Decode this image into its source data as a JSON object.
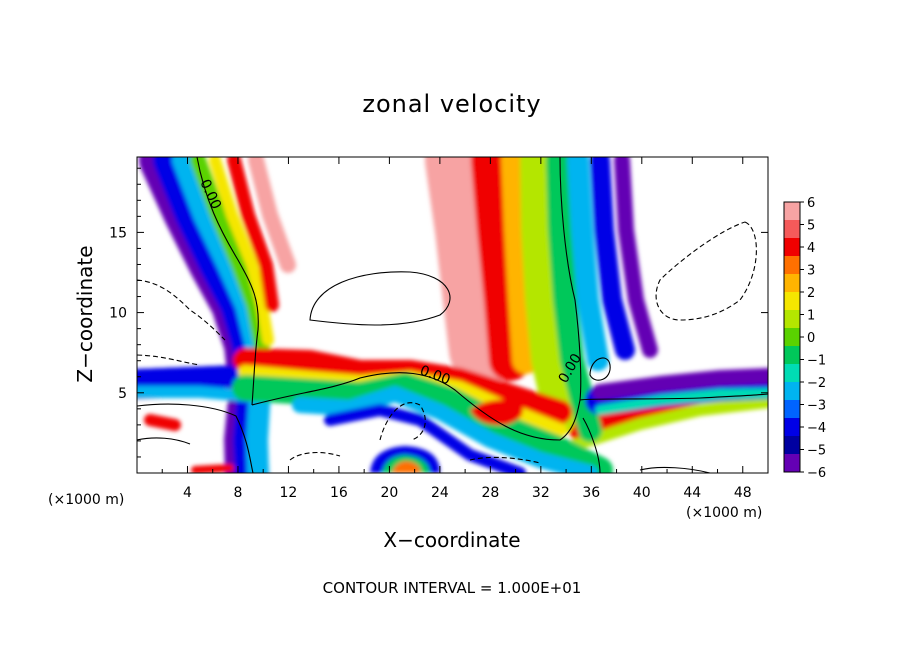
{
  "chart_data": {
    "type": "heatmap",
    "title": "zonal velocity",
    "xlabel": "X−coordinate",
    "ylabel": "Z−coordinate",
    "x_unit_label": "(×1000 m)",
    "y_unit_label": "(×1000 m)",
    "xlim": [
      0,
      50
    ],
    "ylim": [
      0,
      19.7
    ],
    "x_ticks": [
      4,
      8,
      12,
      16,
      20,
      24,
      28,
      32,
      36,
      40,
      44,
      48
    ],
    "y_ticks": [
      5,
      10,
      15
    ],
    "colorbar": {
      "range": [
        -6,
        6
      ],
      "ticks": [
        6,
        5,
        4,
        3,
        2,
        1,
        0,
        -1,
        -2,
        -3,
        -4,
        -5,
        -6
      ],
      "colors": [
        "#f7a3a3",
        "#f55a5a",
        "#f00000",
        "#ff7000",
        "#ffb400",
        "#f5e600",
        "#b4e600",
        "#5ad200",
        "#00c85a",
        "#00dcb4",
        "#00b4f0",
        "#0064ff",
        "#0000e6",
        "#0000a0",
        "#6400b4"
      ]
    },
    "contour_labels": [
      "0.00",
      "0.00",
      "0.00"
    ],
    "footer": "CONTOUR INTERVAL = 1.000E+01"
  }
}
